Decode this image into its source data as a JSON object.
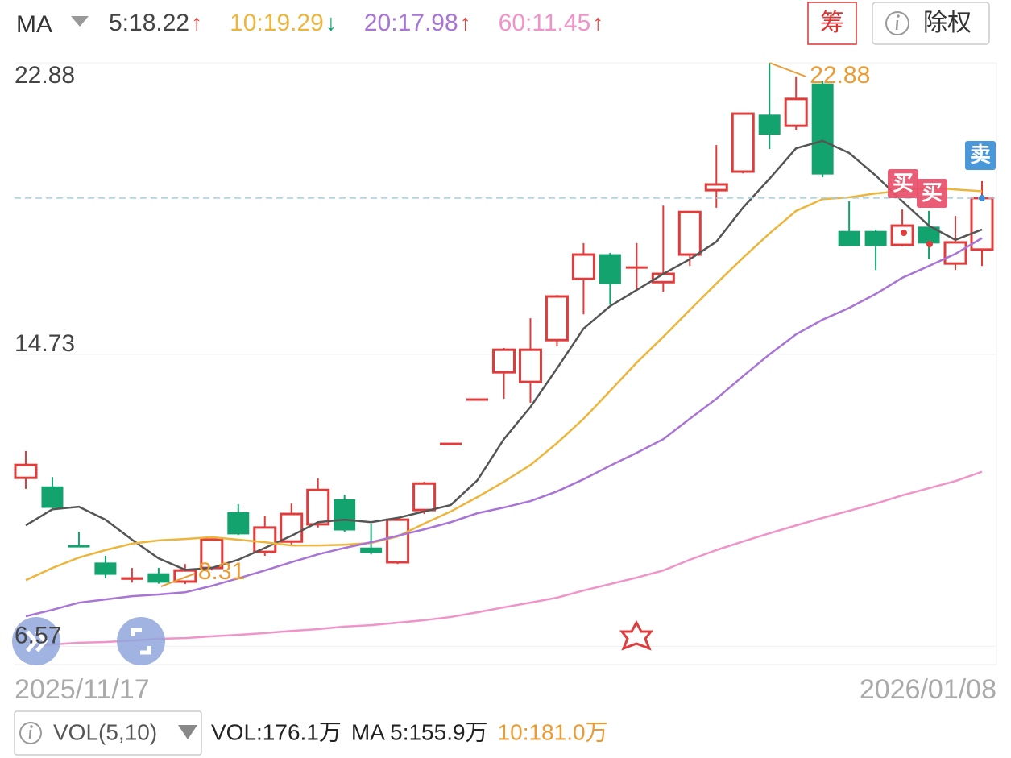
{
  "header": {
    "indicator": "MA",
    "items": [
      {
        "label": "5:18.22",
        "arrow": "↑",
        "color": "#444444",
        "arrow_color": "#e03c3c"
      },
      {
        "label": "10:19.29",
        "arrow": "↓",
        "color": "#ecb53c",
        "arrow_color": "#12a36f"
      },
      {
        "label": "20:17.98",
        "arrow": "↑",
        "color": "#a874d6",
        "arrow_color": "#e03c3c"
      },
      {
        "label": "60:11.45",
        "arrow": "↑",
        "color": "#f093c8",
        "arrow_color": "#e03c3c"
      }
    ],
    "chip_button": "筹",
    "rights_button": "除权"
  },
  "chart_data": {
    "type": "candlestick",
    "up_color": "#e03c3c",
    "down_color": "#12a36f",
    "categories": [
      "2025/11/17",
      null,
      null,
      null,
      null,
      null,
      null,
      null,
      null,
      null,
      null,
      null,
      null,
      null,
      null,
      null,
      null,
      null,
      null,
      null,
      null,
      null,
      null,
      null,
      null,
      null,
      null,
      null,
      null,
      null,
      null,
      null,
      null,
      null,
      null,
      null,
      "2026/01/08"
    ],
    "open": [
      11.28,
      11.03,
      9.39,
      8.9,
      8.44,
      8.6,
      8.38,
      8.76,
      10.31,
      9.21,
      9.5,
      9.98,
      10.67,
      9.32,
      8.92,
      10.38,
      12.24,
      13.48,
      14.23,
      13.96,
      15.13,
      16.84,
      17.52,
      17.14,
      16.75,
      17.52,
      19.32,
      19.84,
      21.42,
      21.12,
      22.29,
      18.17,
      18.17,
      17.79,
      18.29,
      17.27,
      17.66
    ],
    "high": [
      12.03,
      11.3,
      9.77,
      9.1,
      8.76,
      8.76,
      8.87,
      9.59,
      10.54,
      10.22,
      10.56,
      11.26,
      10.81,
      10.0,
      10.16,
      11.17,
      12.25,
      13.49,
      14.91,
      15.74,
      16.39,
      17.84,
      17.57,
      17.84,
      18.89,
      18.74,
      20.58,
      21.48,
      22.88,
      22.5,
      22.38,
      19.01,
      18.22,
      18.78,
      18.74,
      18.6,
      19.57
    ],
    "low": [
      10.97,
      10.4,
      9.37,
      8.47,
      8.35,
      8.32,
      8.31,
      8.69,
      9.68,
      9.1,
      9.37,
      9.89,
      9.77,
      9.14,
      8.87,
      10.27,
      12.24,
      13.48,
      13.49,
      13.38,
      14.95,
      15.85,
      16.12,
      16.53,
      16.48,
      17.2,
      18.83,
      19.79,
      20.47,
      20.99,
      19.68,
      17.77,
      17.09,
      17.75,
      17.39,
      17.09,
      17.2
    ],
    "close": [
      11.64,
      10.45,
      9.37,
      8.58,
      8.49,
      8.36,
      8.69,
      9.55,
      9.71,
      9.89,
      10.27,
      10.94,
      9.82,
      9.19,
      10.11,
      11.12,
      12.25,
      13.49,
      14.86,
      14.86,
      16.35,
      17.52,
      16.71,
      17.18,
      16.98,
      18.71,
      19.48,
      21.46,
      20.88,
      21.87,
      19.77,
      17.77,
      17.77,
      18.33,
      17.84,
      17.86,
      19.1
    ],
    "series": [
      {
        "color": "#555555",
        "values": [
          9.95,
          10.4,
          10.47,
          10.11,
          9.55,
          9.03,
          8.71,
          8.76,
          8.99,
          9.32,
          9.66,
          10.04,
          10.11,
          10.04,
          10.16,
          10.34,
          10.52,
          11.21,
          12.36,
          13.26,
          14.34,
          15.45,
          16.08,
          16.53,
          16.98,
          17.39,
          17.88,
          18.83,
          19.64,
          20.49,
          20.7,
          20.36,
          19.73,
          19.01,
          18.33,
          17.93,
          18.22
        ]
      },
      {
        "color": "#ecb53c",
        "values": [
          8.42,
          8.76,
          9.05,
          9.26,
          9.44,
          9.53,
          9.57,
          9.62,
          9.55,
          9.48,
          9.39,
          9.39,
          9.41,
          9.46,
          9.64,
          10.0,
          10.34,
          10.74,
          11.17,
          11.64,
          12.25,
          12.93,
          13.71,
          14.5,
          15.22,
          15.97,
          16.71,
          17.43,
          18.11,
          18.74,
          19.07,
          19.12,
          19.23,
          19.3,
          19.39,
          19.34,
          19.29
        ]
      },
      {
        "color": "#a874d6",
        "values": [
          7.41,
          7.59,
          7.79,
          7.88,
          7.97,
          8.02,
          8.08,
          8.26,
          8.47,
          8.69,
          8.92,
          9.14,
          9.32,
          9.48,
          9.66,
          9.84,
          10.04,
          10.29,
          10.45,
          10.63,
          10.9,
          11.24,
          11.62,
          11.98,
          12.36,
          12.93,
          13.49,
          14.12,
          14.73,
          15.29,
          15.7,
          16.03,
          16.42,
          16.87,
          17.2,
          17.54,
          17.98
        ]
      },
      {
        "color": "#f093c8",
        "values": [
          6.55,
          6.62,
          6.67,
          6.69,
          6.73,
          6.78,
          6.8,
          6.85,
          6.89,
          6.94,
          7.0,
          7.05,
          7.12,
          7.16,
          7.23,
          7.3,
          7.39,
          7.52,
          7.66,
          7.79,
          7.93,
          8.13,
          8.31,
          8.49,
          8.69,
          8.99,
          9.26,
          9.5,
          9.73,
          9.95,
          10.16,
          10.36,
          10.56,
          10.79,
          10.99,
          11.19,
          11.45
        ]
      }
    ],
    "ylim": [
      6.06,
      22.88
    ],
    "yticks": [
      22.88,
      14.73,
      6.57
    ],
    "grid": true,
    "annotation_color": "#ec9a32",
    "signals": [
      {
        "label": "买",
        "color": "#e84f6a"
      },
      {
        "label": "买",
        "color": "#e84f6a"
      },
      {
        "label": "卖",
        "color": "#3a8fd6"
      }
    ]
  },
  "volume_bar": {
    "label": "VOL(5,10)",
    "items": [
      {
        "label": "VOL:176.1万",
        "color": "#222222"
      },
      {
        "label": "MA 5:155.9万",
        "color": "#222222"
      },
      {
        "label": "10:181.0万",
        "color": "#ec9a32"
      }
    ]
  }
}
